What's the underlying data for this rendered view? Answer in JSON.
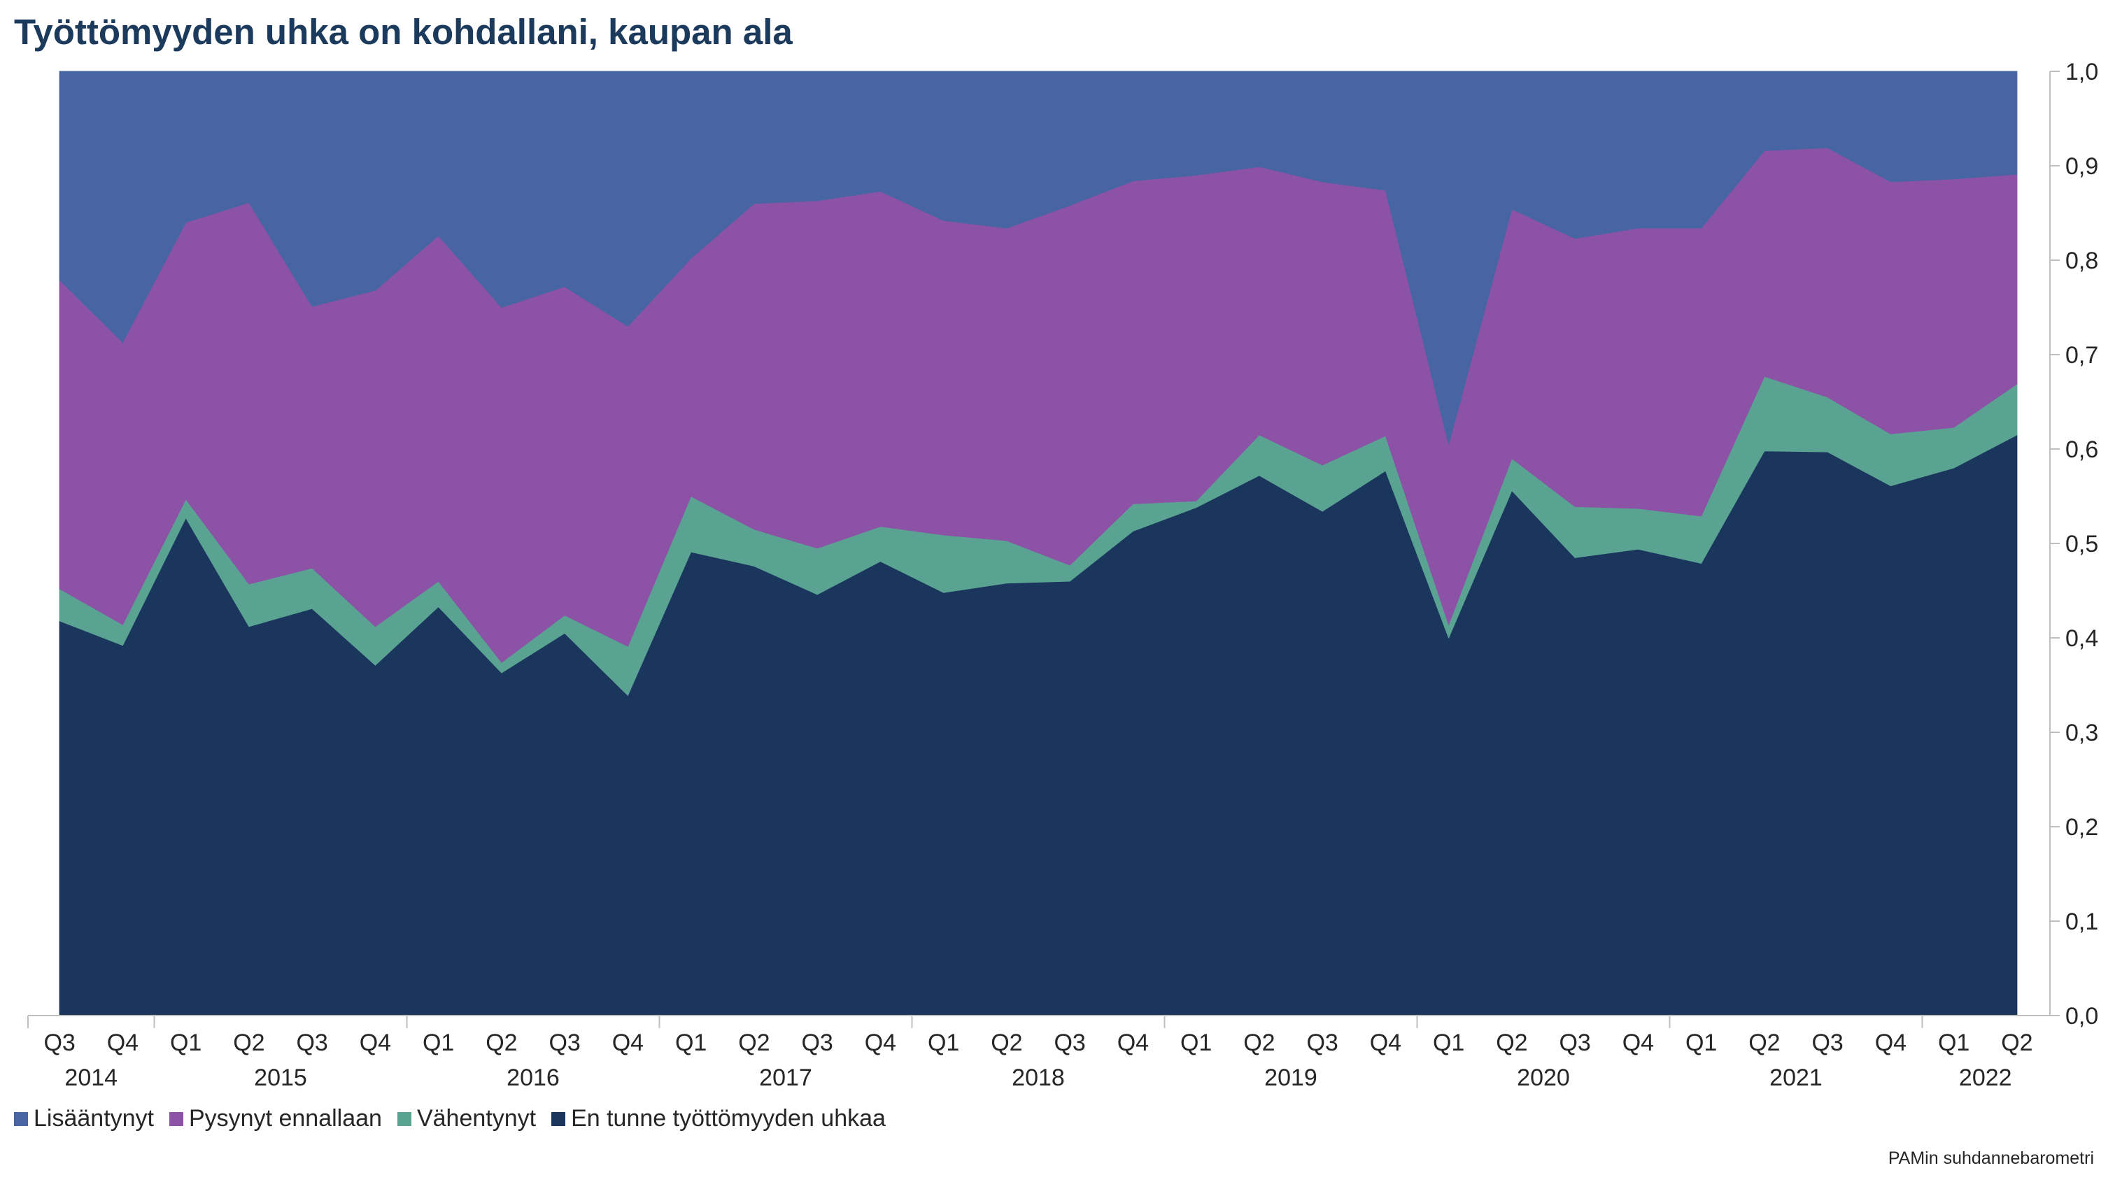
{
  "chart_data": {
    "type": "area",
    "stacked": true,
    "title": "Työttömyyden uhka on kohdallani, kaupan ala",
    "source": "PAMin suhdannebarometri",
    "categories": [
      "Q3",
      "Q4",
      "Q1",
      "Q2",
      "Q3",
      "Q4",
      "Q1",
      "Q2",
      "Q3",
      "Q4",
      "Q1",
      "Q2",
      "Q3",
      "Q4",
      "Q1",
      "Q2",
      "Q3",
      "Q4",
      "Q1",
      "Q2",
      "Q3",
      "Q4",
      "Q1",
      "Q2",
      "Q3",
      "Q4",
      "Q1",
      "Q2",
      "Q3",
      "Q4",
      "Q1",
      "Q2"
    ],
    "years": [
      {
        "label": "2014",
        "at": 0.5
      },
      {
        "label": "2015",
        "at": 3.5
      },
      {
        "label": "2016",
        "at": 7.5
      },
      {
        "label": "2017",
        "at": 11.5
      },
      {
        "label": "2018",
        "at": 15.5
      },
      {
        "label": "2019",
        "at": 19.5
      },
      {
        "label": "2020",
        "at": 23.5
      },
      {
        "label": "2021",
        "at": 27.5
      },
      {
        "label": "2022",
        "at": 30.5
      }
    ],
    "year_separators_after": [
      1,
      5,
      9,
      13,
      17,
      21,
      25,
      29
    ],
    "series": [
      {
        "name": "En tunne työttömyyden uhkaa",
        "color": "#1b365d",
        "values": [
          0.418,
          0.392,
          0.527,
          0.412,
          0.431,
          0.371,
          0.433,
          0.363,
          0.405,
          0.339,
          0.491,
          0.476,
          0.446,
          0.481,
          0.448,
          0.458,
          0.46,
          0.513,
          0.538,
          0.572,
          0.534,
          0.577,
          0.4,
          0.556,
          0.485,
          0.494,
          0.479,
          0.598,
          0.597,
          0.561,
          0.58,
          0.615
        ]
      },
      {
        "name": "Vähentynyt",
        "color": "#5aa392",
        "values": [
          0.034,
          0.022,
          0.02,
          0.045,
          0.043,
          0.041,
          0.027,
          0.011,
          0.019,
          0.052,
          0.059,
          0.039,
          0.049,
          0.037,
          0.061,
          0.045,
          0.017,
          0.029,
          0.007,
          0.043,
          0.049,
          0.037,
          0.014,
          0.034,
          0.054,
          0.043,
          0.05,
          0.079,
          0.058,
          0.055,
          0.043,
          0.054
        ]
      },
      {
        "name": "Pysynyt ennallaan",
        "color": "#8c52a6",
        "values": [
          0.327,
          0.299,
          0.293,
          0.404,
          0.277,
          0.356,
          0.366,
          0.376,
          0.348,
          0.339,
          0.252,
          0.345,
          0.368,
          0.355,
          0.333,
          0.331,
          0.381,
          0.342,
          0.345,
          0.284,
          0.3,
          0.26,
          0.191,
          0.264,
          0.284,
          0.297,
          0.305,
          0.239,
          0.264,
          0.267,
          0.263,
          0.222
        ]
      },
      {
        "name": "Lisääntynyt",
        "color": "#4865a3",
        "values": [
          0.221,
          0.287,
          0.16,
          0.139,
          0.249,
          0.232,
          0.174,
          0.25,
          0.228,
          0.27,
          0.198,
          0.14,
          0.137,
          0.127,
          0.158,
          0.166,
          0.142,
          0.116,
          0.11,
          0.101,
          0.117,
          0.126,
          0.395,
          0.146,
          0.177,
          0.166,
          0.166,
          0.084,
          0.081,
          0.117,
          0.114,
          0.109
        ]
      }
    ],
    "legend_order": [
      "Lisääntynyt",
      "Pysynyt ennallaan",
      "Vähentynyt",
      "En tunne työttömyyden uhkaa"
    ],
    "legend_labels": [
      "Lisääntynyt",
      "Pysynyt ennallaan",
      "Vähentynyt",
      "En tunne työttömyyden uhkaa"
    ],
    "ylim": [
      0,
      1
    ],
    "yticks": [
      "0,0",
      "0,1",
      "0,2",
      "0,3",
      "0,4",
      "0,5",
      "0,6",
      "0,7",
      "0,8",
      "0,9",
      "1,0"
    ],
    "yaxis_side": "right",
    "legend_position": "bottom-left",
    "grid": false
  }
}
